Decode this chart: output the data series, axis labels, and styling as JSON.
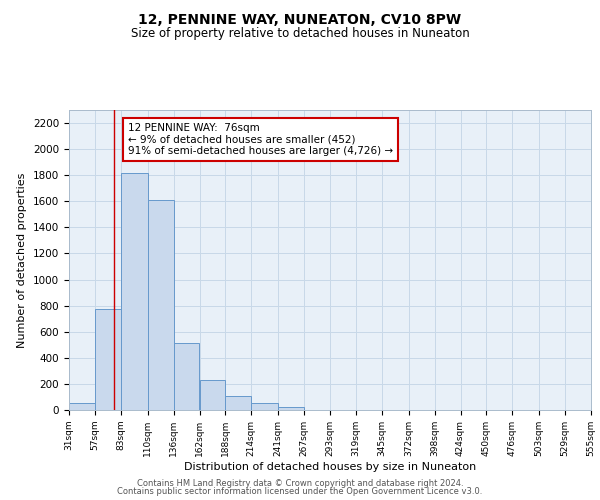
{
  "title": "12, PENNINE WAY, NUNEATON, CV10 8PW",
  "subtitle": "Size of property relative to detached houses in Nuneaton",
  "xlabel": "Distribution of detached houses by size in Nuneaton",
  "ylabel": "Number of detached properties",
  "bar_edges": [
    31,
    57,
    83,
    110,
    136,
    162,
    188,
    214,
    241,
    267,
    293,
    319,
    345,
    372,
    398,
    424,
    450,
    476,
    503,
    529,
    555
  ],
  "bar_heights": [
    50,
    775,
    1820,
    1610,
    515,
    230,
    105,
    55,
    25,
    0,
    0,
    0,
    0,
    0,
    0,
    0,
    0,
    0,
    0,
    0
  ],
  "bar_color": "#c9d9ed",
  "bar_edge_color": "#6699cc",
  "property_line_x": 76,
  "property_line_color": "#cc0000",
  "annotation_line1": "12 PENNINE WAY:  76sqm",
  "annotation_line2": "← 9% of detached houses are smaller (452)",
  "annotation_line3": "91% of semi-detached houses are larger (4,726) →",
  "ylim": [
    0,
    2300
  ],
  "xlim": [
    31,
    555
  ],
  "yticks": [
    0,
    200,
    400,
    600,
    800,
    1000,
    1200,
    1400,
    1600,
    1800,
    2000,
    2200
  ],
  "tick_labels": [
    "31sqm",
    "57sqm",
    "83sqm",
    "110sqm",
    "136sqm",
    "162sqm",
    "188sqm",
    "214sqm",
    "241sqm",
    "267sqm",
    "293sqm",
    "319sqm",
    "345sqm",
    "372sqm",
    "398sqm",
    "424sqm",
    "450sqm",
    "476sqm",
    "503sqm",
    "529sqm",
    "555sqm"
  ],
  "grid_color": "#c8d8e8",
  "background_color": "#e8f0f8",
  "footer_line1": "Contains HM Land Registry data © Crown copyright and database right 2024.",
  "footer_line2": "Contains public sector information licensed under the Open Government Licence v3.0."
}
